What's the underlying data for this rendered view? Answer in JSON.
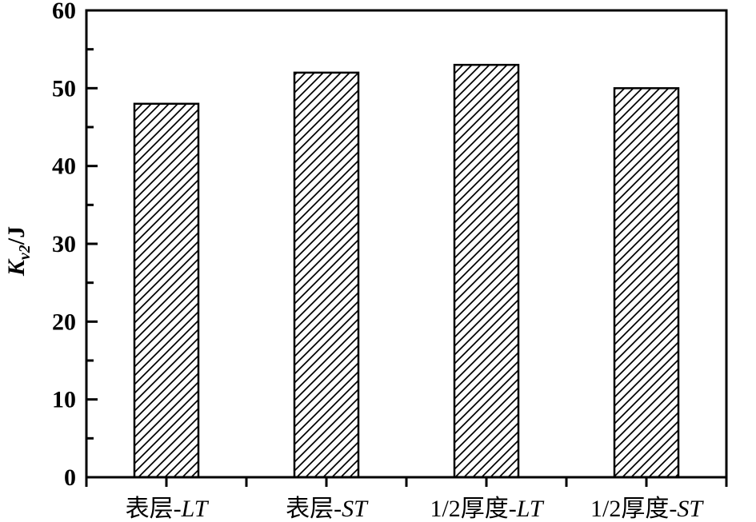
{
  "chart_data": {
    "type": "bar",
    "title": "",
    "categories": [
      "表层-LT",
      "表层-ST",
      "1/2厚度-LT",
      "1/2厚度-ST"
    ],
    "category_parts": [
      {
        "prefix": "表层-",
        "italic": "LT"
      },
      {
        "prefix": "表层-",
        "italic": "ST"
      },
      {
        "prefix": "1/2厚度-",
        "italic": "LT"
      },
      {
        "prefix": "1/2厚度-",
        "italic": "ST"
      }
    ],
    "values": [
      48,
      52,
      53,
      50
    ],
    "xlabel": "",
    "ylabel": "Kv2/J",
    "ylabel_parts": {
      "main": "K",
      "sub": "v2",
      "rest": "/J"
    },
    "ylim": [
      0,
      60
    ],
    "y_major_ticks": [
      0,
      10,
      20,
      30,
      40,
      50,
      60
    ],
    "y_minor_ticks": [
      5,
      15,
      25,
      35,
      45,
      55
    ],
    "grid": false,
    "legend": "none",
    "bar_style": "diagonal-hatch",
    "colors": {
      "ink": "#000000",
      "background": "#ffffff"
    }
  }
}
